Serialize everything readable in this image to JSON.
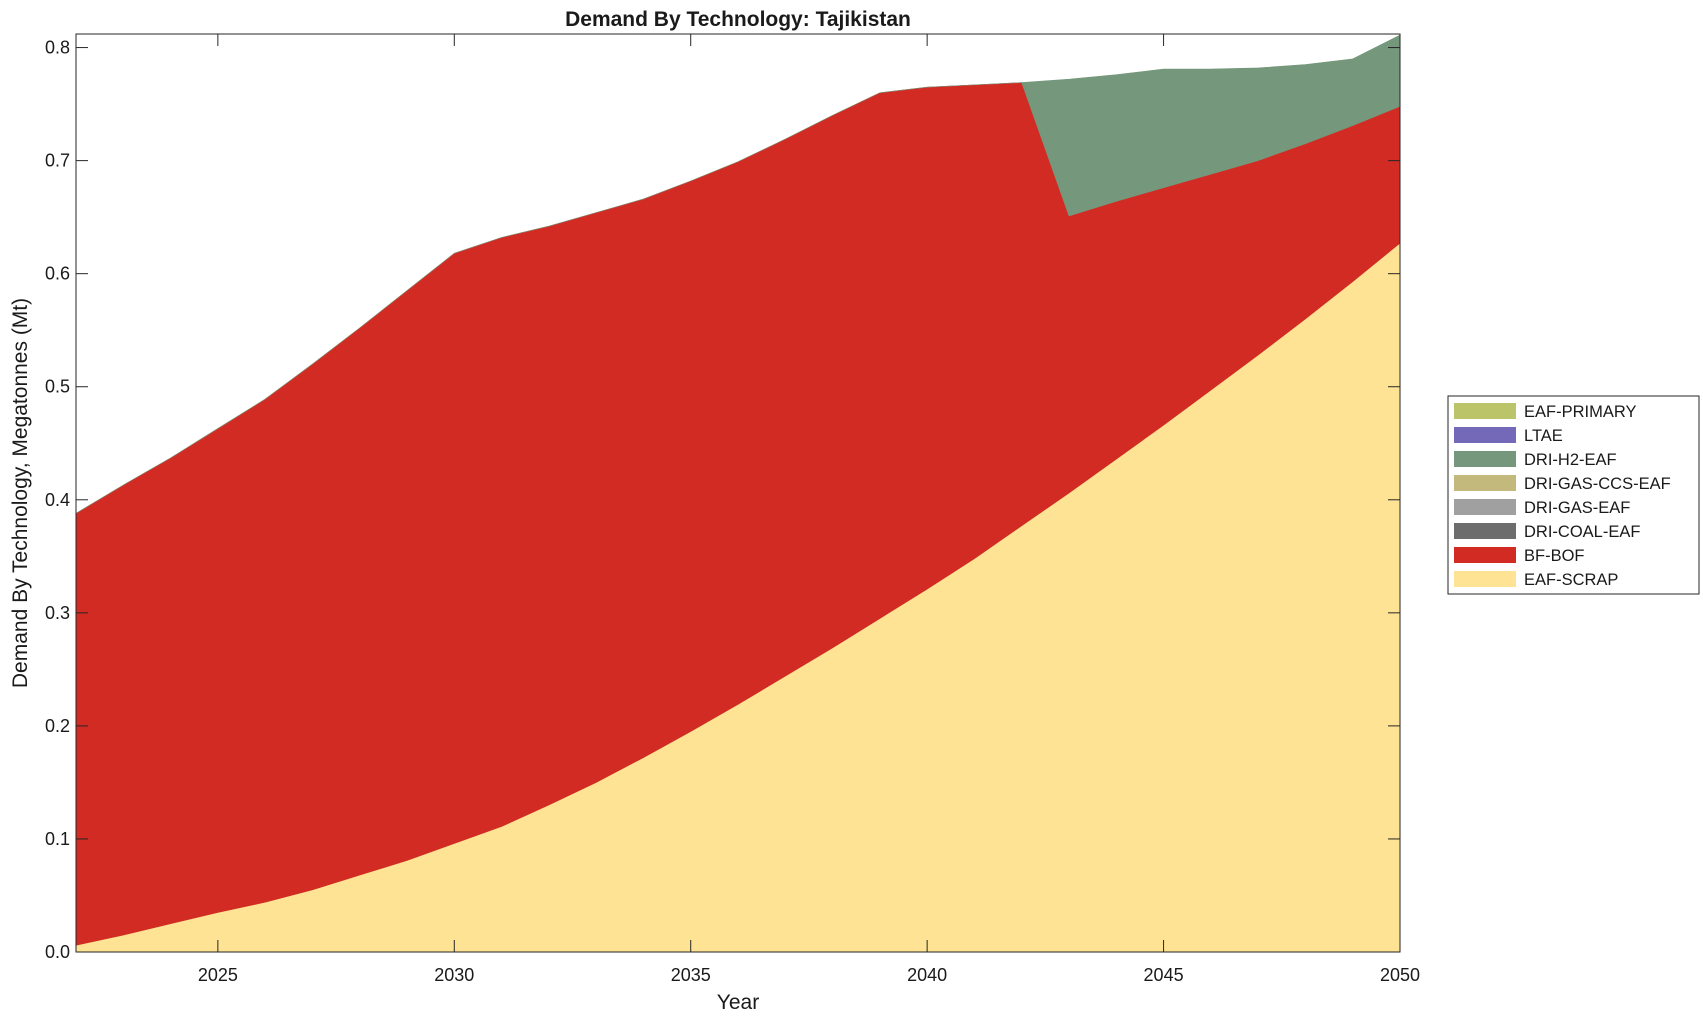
{
  "chart_data": {
    "type": "area",
    "title": "Demand By Technology: Tajikistan",
    "xlabel": "Year",
    "ylabel": "Demand By Technology, Megatonnes (Mt)",
    "xlim": [
      2022,
      2050
    ],
    "ylim": [
      0,
      0.812
    ],
    "xticks": [
      2025,
      2030,
      2035,
      2040,
      2045,
      2050
    ],
    "yticks": [
      0.0,
      0.1,
      0.2,
      0.3,
      0.4,
      0.5,
      0.6,
      0.7,
      0.8
    ],
    "ytick_labels": [
      "0.0",
      "0.1",
      "0.2",
      "0.3",
      "0.4",
      "0.5",
      "0.6",
      "0.7",
      "0.8"
    ],
    "grid": false,
    "legend_position": "right",
    "x": [
      2022,
      2023,
      2024,
      2025,
      2026,
      2027,
      2028,
      2029,
      2030,
      2031,
      2032,
      2033,
      2034,
      2035,
      2036,
      2037,
      2038,
      2039,
      2040,
      2041,
      2042,
      2043,
      2044,
      2045,
      2046,
      2047,
      2048,
      2049,
      2050
    ],
    "series": [
      {
        "name": "EAF-SCRAP",
        "color": "#fde393",
        "values": [
          0.006,
          0.015,
          0.025,
          0.035,
          0.044,
          0.055,
          0.068,
          0.081,
          0.096,
          0.111,
          0.13,
          0.15,
          0.172,
          0.195,
          0.219,
          0.244,
          0.269,
          0.295,
          0.321,
          0.348,
          0.377,
          0.406,
          0.436,
          0.466,
          0.497,
          0.528,
          0.56,
          0.593,
          0.627
        ]
      },
      {
        "name": "BF-BOF",
        "color": "#d12b24",
        "values": [
          0.382,
          0.398,
          0.412,
          0.428,
          0.445,
          0.465,
          0.484,
          0.504,
          0.522,
          0.521,
          0.512,
          0.504,
          0.494,
          0.487,
          0.48,
          0.475,
          0.471,
          0.465,
          0.444,
          0.419,
          0.392,
          0.245,
          0.228,
          0.21,
          0.191,
          0.172,
          0.155,
          0.138,
          0.121
        ]
      },
      {
        "name": "DRI-COAL-EAF",
        "color": "#6d6d6d",
        "values": [
          0,
          0,
          0,
          0,
          0,
          0,
          0,
          0,
          0,
          0,
          0,
          0,
          0,
          0,
          0,
          0,
          0,
          0,
          0,
          0,
          0,
          0,
          0,
          0,
          0,
          0,
          0,
          0,
          0
        ]
      },
      {
        "name": "DRI-GAS-EAF",
        "color": "#a0a0a0",
        "values": [
          0,
          0,
          0,
          0,
          0,
          0,
          0,
          0,
          0,
          0,
          0,
          0,
          0,
          0,
          0,
          0,
          0,
          0,
          0,
          0,
          0,
          0,
          0,
          0,
          0,
          0,
          0,
          0,
          0
        ]
      },
      {
        "name": "DRI-GAS-CCS-EAF",
        "color": "#c4b97c",
        "values": [
          0,
          0,
          0,
          0,
          0,
          0,
          0,
          0,
          0,
          0,
          0,
          0,
          0,
          0,
          0,
          0,
          0,
          0,
          0,
          0,
          0,
          0,
          0,
          0,
          0,
          0,
          0,
          0,
          0
        ]
      },
      {
        "name": "DRI-H2-EAF",
        "color": "#75977b",
        "values": [
          0,
          0,
          0,
          0,
          0,
          0,
          0,
          0,
          0,
          0,
          0,
          0,
          0,
          0,
          0,
          0,
          0,
          0,
          0,
          0,
          0,
          0.121,
          0.112,
          0.105,
          0.093,
          0.082,
          0.07,
          0.059,
          0.063
        ]
      },
      {
        "name": "LTAE",
        "color": "#7469b8",
        "values": [
          0,
          0,
          0,
          0,
          0,
          0,
          0,
          0,
          0,
          0,
          0,
          0,
          0,
          0,
          0,
          0,
          0,
          0,
          0,
          0,
          0,
          0,
          0,
          0,
          0,
          0,
          0,
          0,
          0
        ]
      },
      {
        "name": "EAF-PRIMARY",
        "color": "#bcc46a",
        "values": [
          0,
          0,
          0,
          0,
          0,
          0,
          0,
          0,
          0,
          0,
          0,
          0,
          0,
          0,
          0,
          0,
          0,
          0,
          0,
          0,
          0,
          0,
          0,
          0,
          0,
          0,
          0,
          0,
          0
        ]
      }
    ]
  }
}
